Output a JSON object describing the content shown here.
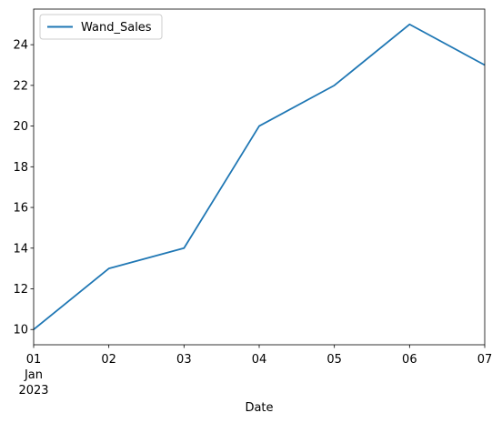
{
  "chart_data": {
    "type": "line",
    "x": [
      "2023-01-01",
      "2023-01-02",
      "2023-01-03",
      "2023-01-04",
      "2023-01-05",
      "2023-01-06",
      "2023-01-07"
    ],
    "series": [
      {
        "name": "Wand_Sales",
        "values": [
          10,
          13,
          14,
          20,
          22,
          25,
          23
        ]
      }
    ],
    "xlabel": "Date",
    "ylabel": "",
    "title": "",
    "x_tick_labels": [
      "01",
      "02",
      "03",
      "04",
      "05",
      "06",
      "07"
    ],
    "x_tick_sublabels": [
      "Jan",
      "2023"
    ],
    "y_ticks": [
      10,
      12,
      14,
      16,
      18,
      20,
      22,
      24
    ],
    "ylim": [
      9.25,
      25.75
    ],
    "grid": false,
    "legend_position": "top-left",
    "line_color": "#1f77b4"
  }
}
